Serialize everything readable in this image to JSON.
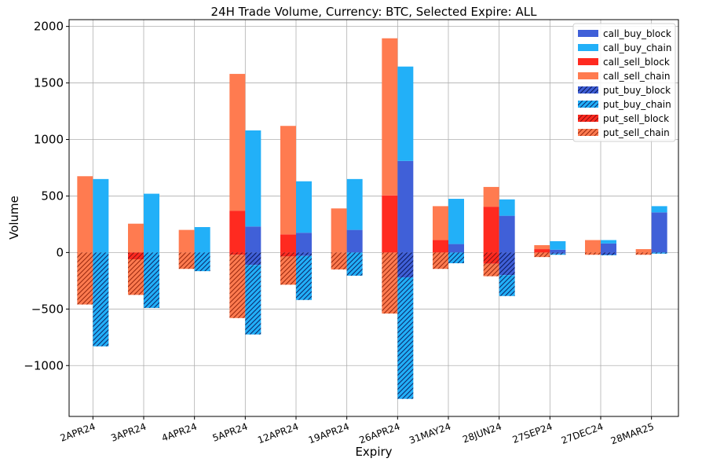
{
  "chart_data": {
    "type": "bar",
    "title": "24H Trade Volume, Currency: BTC, Selected Expire: ALL",
    "xlabel": "Expiry",
    "ylabel": "Volume",
    "ylim": [
      -1450,
      2060
    ],
    "yticks": [
      -1000,
      -500,
      0,
      500,
      1000,
      1500,
      2000
    ],
    "ytick_labels": [
      "−1000",
      "−500",
      "0",
      "500",
      "1000",
      "1500",
      "2000"
    ],
    "grid": true,
    "legend_position": "top-right",
    "categories": [
      "2APR24",
      "3APR24",
      "4APR24",
      "5APR24",
      "12APR24",
      "19APR24",
      "26APR24",
      "31MAY24",
      "28JUN24",
      "27SEP24",
      "27DEC24",
      "28MAR25"
    ],
    "series": [
      {
        "name": "call_buy_block",
        "color": "#4060d8",
        "hatch": false,
        "values": [
          0,
          0,
          0,
          230,
          175,
          200,
          810,
          75,
          325,
          25,
          80,
          355
        ]
      },
      {
        "name": "call_buy_chain",
        "color": "#22b0f8",
        "hatch": false,
        "values": [
          650,
          520,
          225,
          850,
          455,
          450,
          835,
          400,
          145,
          75,
          30,
          55
        ]
      },
      {
        "name": "call_sell_block",
        "color": "#ff2a20",
        "hatch": false,
        "values": [
          0,
          0,
          0,
          370,
          160,
          0,
          505,
          110,
          405,
          30,
          0,
          0
        ]
      },
      {
        "name": "call_sell_chain",
        "color": "#ff7b50",
        "hatch": false,
        "values": [
          675,
          255,
          200,
          1210,
          960,
          390,
          1390,
          300,
          175,
          35,
          110,
          30
        ]
      },
      {
        "name": "put_buy_block",
        "color": "#4060d8",
        "hatch": true,
        "values": [
          0,
          0,
          0,
          -110,
          -30,
          0,
          -220,
          0,
          -200,
          -10,
          -20,
          0
        ]
      },
      {
        "name": "put_buy_chain",
        "color": "#22b0f8",
        "hatch": true,
        "values": [
          -830,
          -490,
          -165,
          -615,
          -390,
          -205,
          -1075,
          -95,
          -185,
          -10,
          -5,
          -10
        ]
      },
      {
        "name": "put_sell_block",
        "color": "#ff2a20",
        "hatch": true,
        "values": [
          0,
          -60,
          0,
          -20,
          -35,
          0,
          0,
          0,
          -100,
          0,
          0,
          0
        ]
      },
      {
        "name": "put_sell_chain",
        "color": "#ff7b50",
        "hatch": true,
        "values": [
          -460,
          -315,
          -145,
          -560,
          -250,
          -150,
          -540,
          -145,
          -110,
          -40,
          -20,
          -20
        ]
      }
    ]
  }
}
